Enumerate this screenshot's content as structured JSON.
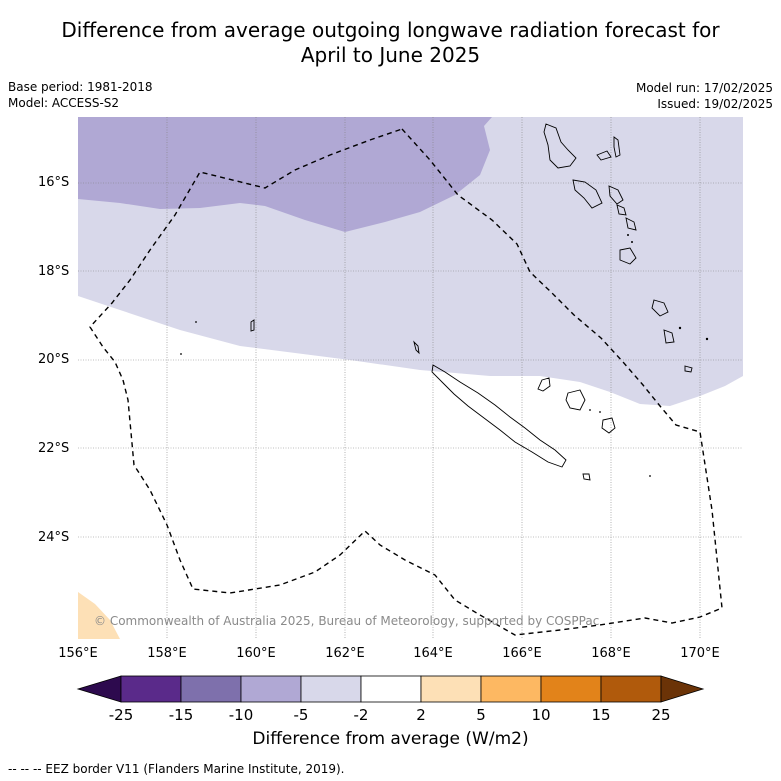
{
  "title_line1": "Difference from average outgoing longwave radiation forecast for",
  "title_line2": "April to June 2025",
  "meta": {
    "base_period": "Base period: 1981-2018",
    "model": "Model: ACCESS-S2",
    "model_run": "Model run: 17/02/2025",
    "issued": "Issued: 19/02/2025"
  },
  "map": {
    "lat_labels": [
      "16°S",
      "18°S",
      "20°S",
      "22°S",
      "24°S"
    ],
    "lon_labels": [
      "156°E",
      "158°E",
      "160°E",
      "162°E",
      "164°E",
      "166°E",
      "168°E",
      "170°E"
    ],
    "copyright": "© Commonwealth of Australia 2025, Bureau of Meteorology, supported by COSPPac"
  },
  "colorbar": {
    "labels": [
      "-25",
      "-15",
      "-10",
      "-5",
      "-2",
      "2",
      "5",
      "10",
      "15",
      "25"
    ],
    "colors": [
      "#2d0a4e",
      "#5a2a8a",
      "#7e70ac",
      "#b0a8d4",
      "#d8d8ea",
      "#ffffff",
      "#fde0b6",
      "#fdb862",
      "#e2831a",
      "#b05a0c",
      "#6b3307"
    ],
    "title": "Difference from average (W/m2)"
  },
  "legend_note": "--  --  -- EEZ border V11 (Flanders Marine Institute, 2019)."
}
